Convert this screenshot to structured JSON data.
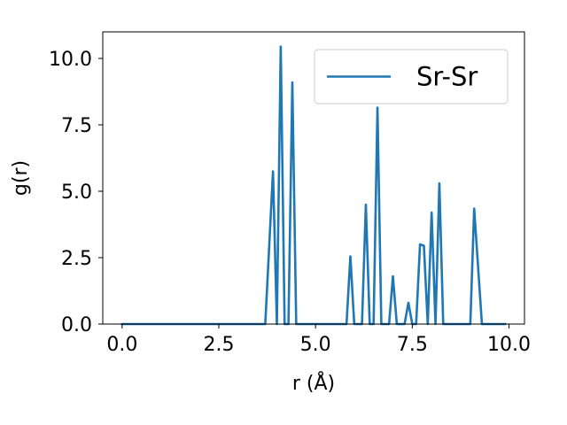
{
  "chart_data": {
    "type": "line",
    "title": "",
    "xlabel": "r (Å)",
    "ylabel": "g(r)",
    "xlim": [
      -0.5,
      10.4
    ],
    "ylim": [
      0,
      11
    ],
    "xticks": [
      0.0,
      2.5,
      5.0,
      7.5,
      10.0
    ],
    "xtick_labels": [
      "0.0",
      "2.5",
      "5.0",
      "7.5",
      "10.0"
    ],
    "yticks": [
      0.0,
      2.5,
      5.0,
      7.5,
      10.0
    ],
    "ytick_labels": [
      "0.0",
      "2.5",
      "5.0",
      "7.5",
      "10.0"
    ],
    "grid": false,
    "legend_position": "top-right",
    "colors": {
      "series": "#1f77b4"
    },
    "series": [
      {
        "name": "Sr-Sr",
        "x": [
          0.0,
          3.7,
          3.9,
          4.0,
          4.1,
          4.2,
          4.3,
          4.4,
          4.5,
          5.8,
          5.9,
          6.0,
          6.2,
          6.3,
          6.4,
          6.5,
          6.6,
          6.7,
          6.9,
          7.0,
          7.1,
          7.3,
          7.4,
          7.5,
          7.6,
          7.7,
          7.8,
          7.9,
          8.0,
          8.1,
          8.2,
          8.3,
          9.0,
          9.1,
          9.3,
          9.9
        ],
        "y": [
          0,
          0,
          5.75,
          0,
          10.45,
          0,
          0,
          9.1,
          0,
          0,
          2.55,
          0,
          0,
          4.5,
          0,
          0,
          8.15,
          0,
          0,
          1.8,
          0,
          0,
          0.8,
          0,
          0,
          3.0,
          2.95,
          0,
          4.2,
          0,
          5.3,
          0,
          0,
          4.35,
          0,
          0
        ]
      }
    ]
  }
}
